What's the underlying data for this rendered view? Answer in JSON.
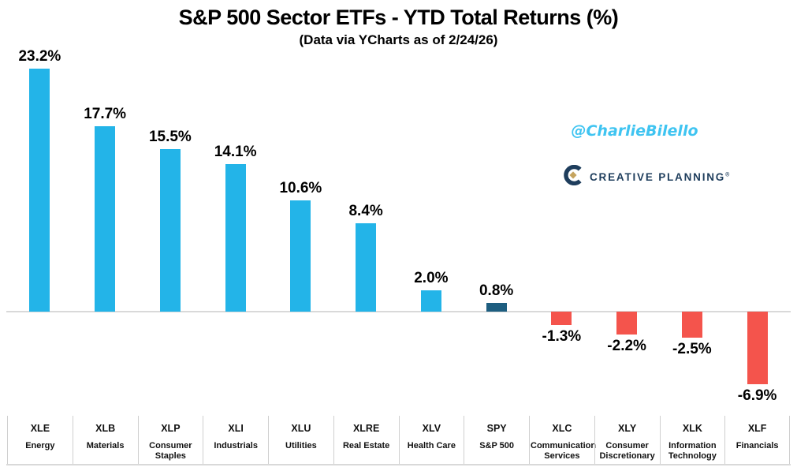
{
  "header": {
    "title": "S&P 500 Sector ETFs - YTD Total Returns (%)",
    "subtitle": "(Data via YCharts as of 2/24/26)"
  },
  "watermark": {
    "text": "@CharlieBilello",
    "color": "#3FC4F1"
  },
  "logo": {
    "name": "Creative Planning",
    "text": "CREATIVE PLANNING",
    "registered_mark": "®",
    "navy": "#1E3D5C",
    "gold": "#C5A45F"
  },
  "chart_data": {
    "type": "bar",
    "title": "S&P 500 Sector ETFs - YTD Total Returns (%)",
    "subtitle": "(Data via YCharts as of 2/24/26)",
    "categories": [
      {
        "ticker": "XLE",
        "name": "Energy"
      },
      {
        "ticker": "XLB",
        "name": "Materials"
      },
      {
        "ticker": "XLP",
        "name": "Consumer Staples"
      },
      {
        "ticker": "XLI",
        "name": "Industrials"
      },
      {
        "ticker": "XLU",
        "name": "Utilities"
      },
      {
        "ticker": "XLRE",
        "name": "Real Estate"
      },
      {
        "ticker": "XLV",
        "name": "Health Care"
      },
      {
        "ticker": "SPY",
        "name": "S&P 500"
      },
      {
        "ticker": "XLC",
        "name": "Communication Services"
      },
      {
        "ticker": "XLY",
        "name": "Consumer Discretionary"
      },
      {
        "ticker": "XLK",
        "name": "Information Technology"
      },
      {
        "ticker": "XLF",
        "name": "Financials"
      }
    ],
    "values": [
      23.2,
      17.7,
      15.5,
      14.1,
      10.6,
      8.4,
      2.0,
      0.8,
      -1.3,
      -2.2,
      -2.5,
      -6.9
    ],
    "value_labels": [
      "23.2%",
      "17.7%",
      "15.5%",
      "14.1%",
      "10.6%",
      "8.4%",
      "2.0%",
      "0.8%",
      "-1.3%",
      "-2.2%",
      "-2.5%",
      "-6.9%"
    ],
    "bar_colors": [
      "#23B4E8",
      "#23B4E8",
      "#23B4E8",
      "#23B4E8",
      "#23B4E8",
      "#23B4E8",
      "#23B4E8",
      "#1E5E80",
      "#F4544C",
      "#F4544C",
      "#F4544C",
      "#F4544C"
    ],
    "ylim": [
      -8,
      25
    ],
    "grid": false,
    "legend": "none",
    "axis_line_color": "#D9D9D9",
    "xlabel": "",
    "ylabel": ""
  }
}
